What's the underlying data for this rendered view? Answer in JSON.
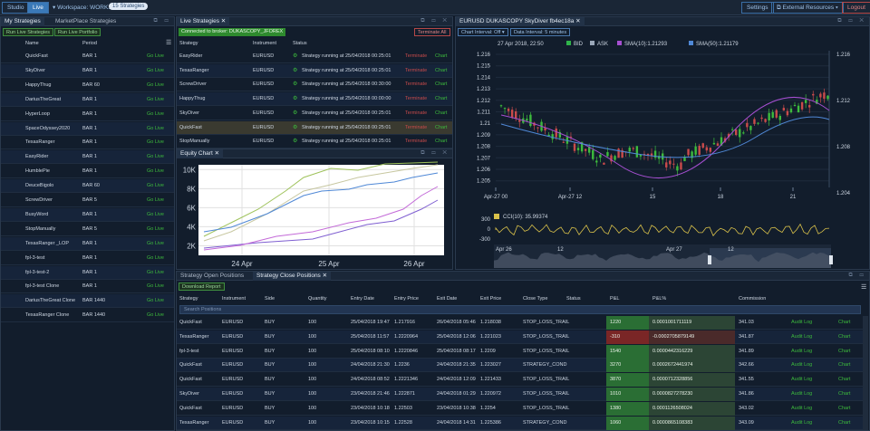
{
  "topbar": {
    "studio": "Studio",
    "live": "Live",
    "workspace": "▾ Workspace: WORK1",
    "strategies_badge": "15 Strategies",
    "settings": "Settings",
    "external": "⧉ External Resources ▾",
    "logout": "Logout"
  },
  "my_strategies": {
    "tabs": [
      "My Strategies",
      "MarketPlace Strategies"
    ],
    "run_live": "Run Live Strategies",
    "run_portfolio": "Run Live Portfolio",
    "col_name": "Name",
    "col_period": "Period",
    "rows": [
      [
        "QuickFast",
        "BAR 1",
        "Go Live"
      ],
      [
        "SkyDiver",
        "BAR 1",
        "Go Live"
      ],
      [
        "HappyThug",
        "BAR 60",
        "Go Live"
      ],
      [
        "DariusTheGreat",
        "BAR 1",
        "Go Live"
      ],
      [
        "HyperLoop",
        "BAR 1",
        "Go Live"
      ],
      [
        "SpaceOdyssey2020",
        "BAR 1",
        "Go Live"
      ],
      [
        "TexasRanger",
        "BAR 1",
        "Go Live"
      ],
      [
        "EasyRider",
        "BAR 1",
        "Go Live"
      ],
      [
        "HumblePie",
        "BAR 1",
        "Go Live"
      ],
      [
        "DeuceBigolo",
        "BAR 60",
        "Go Live"
      ],
      [
        "ScrewDriver",
        "BAR 5",
        "Go Live"
      ],
      [
        "BusyWord",
        "BAR 1",
        "Go Live"
      ],
      [
        "StopManually",
        "BAR 5",
        "Go Live"
      ],
      [
        "TexasRanger _LOP",
        "BAR 1",
        "Go Live"
      ],
      [
        "fpl-3-test",
        "BAR 1",
        "Go Live"
      ],
      [
        "fpl-3-test-2",
        "BAR 1",
        "Go Live"
      ],
      [
        "fpl-3-test Clone",
        "BAR 1",
        "Go Live"
      ],
      [
        "DariusTheGreat Clone",
        "BAR 1440",
        "Go Live"
      ],
      [
        "TexasRanger Clone",
        "BAR 1440",
        "Go Live"
      ]
    ]
  },
  "live_strategies": {
    "tab": "Live Strategies",
    "connected": "Connected to broker: DUKASCOPY_JFOREX",
    "terminate_all": "Terminate All",
    "col_strategy": "Strategy",
    "col_instrument": "Instrument",
    "col_status": "Status",
    "rows": [
      [
        "EasyRider",
        "EURUSD",
        "Strategy running at 25/04/2018 00:25:01",
        "Terminate",
        "Chart"
      ],
      [
        "TexasRanger",
        "EURUSD",
        "Strategy running at 25/04/2018 00:25:01",
        "Terminate",
        "Chart"
      ],
      [
        "ScrewDriver",
        "EURUSD",
        "Strategy running at 25/04/2018 00:30:00",
        "Terminate",
        "Chart"
      ],
      [
        "HappyThug",
        "EURUSD",
        "Strategy running at 25/04/2018 00:00:00",
        "Terminate",
        "Chart"
      ],
      [
        "SkyDiver",
        "EURUSD",
        "Strategy running at 25/04/2018 00:25:01",
        "Terminate",
        "Chart"
      ],
      [
        "QuickFast",
        "EURUSD",
        "Strategy running at 25/04/2018 00:25:01",
        "Terminate",
        "Chart"
      ],
      [
        "StopManually",
        "EURUSD",
        "Strategy running at 25/04/2018 00:25:01",
        "Terminate",
        "Chart"
      ]
    ]
  },
  "equity": {
    "tab": "Equity Chart"
  },
  "chart_data": [
    {
      "type": "line",
      "y_ticks": [
        "2K",
        "4K",
        "6K",
        "8K",
        "10K"
      ],
      "x_ticks": [
        "24 Apr",
        "25 Apr",
        "26 Apr"
      ],
      "ylim": [
        1000,
        10500
      ],
      "colors": [
        "#9ec25a",
        "#c7c7a0",
        "#7f5fd1",
        "#c36ad8",
        "#4f88d6"
      ]
    },
    {
      "type": "line",
      "header": "EURUSD DUKASCOPY SkyDiver fb4ec18a",
      "interval": "Chart Interval: Off ▾",
      "data_interval": "Data Interval: 5 minutes",
      "timestamp": "27 Apr 2018, 22:50",
      "bid": "BID",
      "ask": "ASK",
      "sma10": "SMA(10):1.21293",
      "sma50": "SMA(50):1.21179",
      "left_ticks": [
        "1.216",
        "1.215",
        "1.214",
        "1.213",
        "1.212",
        "1.211",
        "1.21",
        "1.209",
        "1.208",
        "1.207",
        "1.206",
        "1.205"
      ],
      "right_ticks": [
        "1.216",
        "1.212",
        "1.208",
        "1.204"
      ],
      "x_ticks": [
        "Apr-27 00",
        "Apr-27 12",
        "15",
        "18",
        "21"
      ],
      "cci_label": "CCI(10): 35.99374",
      "cci_ticks": [
        "300",
        "0",
        "-300"
      ],
      "nav_ticks": [
        "Apr 26",
        "12",
        "Apr 27",
        "12"
      ]
    }
  ],
  "close_positions": {
    "tabs": [
      "Strategy Open Positions",
      "Strategy Close Positions"
    ],
    "download": "Download Report",
    "search": "Search Positions",
    "headers": [
      "Strategy",
      "Instrument",
      "Side",
      "Quantity",
      "Entry Date",
      "Entry Price",
      "Exit Date",
      "Exit Price",
      "Close Type",
      "Status",
      "P&L",
      "P&L%",
      "Commission"
    ],
    "rows": [
      [
        "QuickFast",
        "EURUSD",
        "BUY",
        "100",
        "25/04/2018 19:47",
        "1.217916",
        "26/04/2018 05:46",
        "1.218038",
        "STOP_LOSS_TRAIL",
        "",
        "1220",
        "0.0001001711119",
        "341.03",
        "Audit Log",
        "Chart"
      ],
      [
        "TexasRanger",
        "EURUSD",
        "BUY",
        "100",
        "25/04/2018 11:57",
        "1.2220964",
        "25/04/2018 12:06",
        "1.221023",
        "STOP_LOSS_TRAIL",
        "",
        "-310",
        "-0.0002705879149",
        "341.87",
        "Audit Log",
        "Chart"
      ],
      [
        "fpl-3-test",
        "EURUSD",
        "BUY",
        "100",
        "25/04/2018 08:10",
        "1.2220846",
        "25/04/2018 08:17",
        "1.2209",
        "STOP_LOSS_TRAIL",
        "",
        "1540",
        "0.0000442316229",
        "341.89",
        "Audit Log",
        "Chart"
      ],
      [
        "QuickFast",
        "EURUSD",
        "BUY",
        "100",
        "24/04/2018 21:30",
        "1.2236",
        "24/04/2018 21:35",
        "1.223027",
        "STRATEGY_COND",
        "",
        "3270",
        "0.0002672441974",
        "342.66",
        "Audit Log",
        "Chart"
      ],
      [
        "QuickFast",
        "EURUSD",
        "BUY",
        "100",
        "24/04/2018 08:52",
        "1.2221346",
        "24/04/2018 12:09",
        "1.221433",
        "STOP_LOSS_TRAIL",
        "",
        "3870",
        "0.0000712328856",
        "341.55",
        "Audit Log",
        "Chart"
      ],
      [
        "SkyDiver",
        "EURUSD",
        "BUY",
        "100",
        "23/04/2018 21:46",
        "1.222871",
        "24/04/2018 01:29",
        "1.220972",
        "STOP_LOSS_TRAIL",
        "",
        "1010",
        "0.0000827278230",
        "341.86",
        "Audit Log",
        "Chart"
      ],
      [
        "QuickFast",
        "EURUSD",
        "BUY",
        "100",
        "23/04/2018 10:18",
        "1.22503",
        "23/04/2018 10:38",
        "1.2254",
        "STOP_LOSS_TRAIL",
        "",
        "1380",
        "0.0001126508024",
        "343.02",
        "Audit Log",
        "Chart"
      ],
      [
        "TexasRanger",
        "EURUSD",
        "BUY",
        "100",
        "23/04/2018 10:15",
        "1.22528",
        "24/04/2018 14:31",
        "1.225386",
        "STRATEGY_COND",
        "",
        "1060",
        "0.0000865108383",
        "343.09",
        "Audit Log",
        "Chart"
      ]
    ]
  }
}
